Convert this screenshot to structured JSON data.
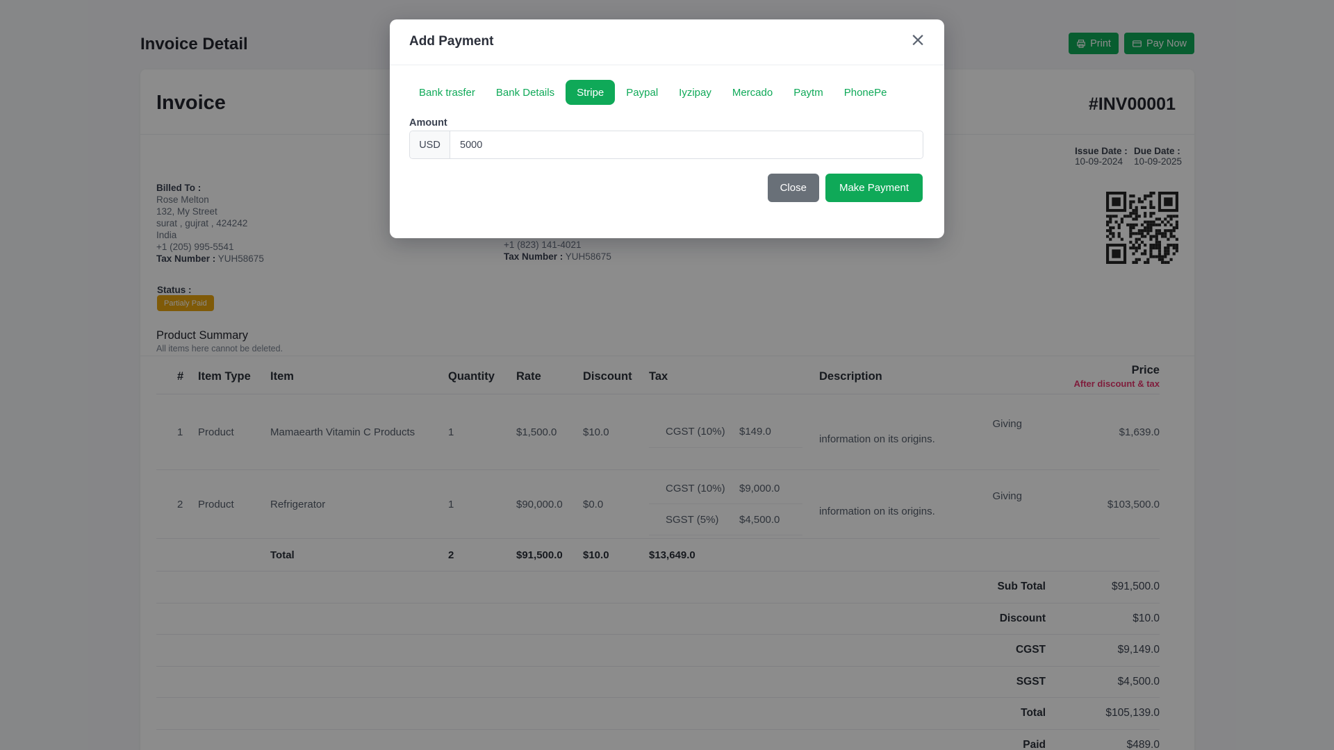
{
  "colors": {
    "green": "#0fa958",
    "gray": "#697078",
    "warning": "#e7a40f",
    "danger": "#e8356d"
  },
  "topbar": {
    "title": "Invoice Detail",
    "print_label": "Print",
    "pay_now_label": "Pay Now"
  },
  "invoice": {
    "heading": "Invoice",
    "number": "#INV00001",
    "billed_to": {
      "label": "Billed To :",
      "lines": [
        "Rose Melton",
        "132, My Street",
        "surat , gujrat , 424242",
        "India",
        "+1 (205) 995-5541"
      ],
      "tax_label": "Tax Number :",
      "tax_value": "YUH58675"
    },
    "shipped_partial": {
      "phone": "+1 (823) 141-4021",
      "tax_label": "Tax Number :",
      "tax_value": "YUH58675"
    },
    "issue_date_label": "Issue Date :",
    "issue_date": "10-09-2024",
    "due_date_label": "Due Date :",
    "due_date": "10-09-2025",
    "status_label": "Status :",
    "status_badge": "Partialy Paid"
  },
  "product_summary": {
    "title": "Product Summary",
    "subtitle": "All items here cannot be deleted.",
    "columns": [
      "#",
      "Item Type",
      "Item",
      "Quantity",
      "Rate",
      "Discount",
      "Tax",
      "Description",
      "Price"
    ],
    "price_subnote": "After discount & tax",
    "rows": [
      {
        "num": "1",
        "item_type": "Product",
        "item": "Mamaearth Vitamin C Products",
        "quantity": "1",
        "rate": "$1,500.0",
        "discount": "$10.0",
        "taxes": [
          {
            "name": "CGST (10%)",
            "amount": "$149.0"
          }
        ],
        "description_line1": "Giving",
        "description_line2": "information on its origins.",
        "price": "$1,639.0"
      },
      {
        "num": "2",
        "item_type": "Product",
        "item": "Refrigerator",
        "quantity": "1",
        "rate": "$90,000.0",
        "discount": "$0.0",
        "taxes": [
          {
            "name": "CGST (10%)",
            "amount": "$9,000.0"
          },
          {
            "name": "SGST (5%)",
            "amount": "$4,500.0"
          }
        ],
        "description_line1": "Giving",
        "description_line2": "information on its origins.",
        "price": "$103,500.0"
      }
    ],
    "total_row": {
      "label": "Total",
      "quantity": "2",
      "rate": "$91,500.0",
      "discount": "$10.0",
      "tax": "$13,649.0"
    },
    "summary": [
      {
        "label": "Sub Total",
        "value": "$91,500.0"
      },
      {
        "label": "Discount",
        "value": "$10.0"
      },
      {
        "label": "CGST",
        "value": "$9,149.0"
      },
      {
        "label": "SGST",
        "value": "$4,500.0"
      },
      {
        "label": "Total",
        "value": "$105,139.0"
      },
      {
        "label": "Paid",
        "value": "$489.0"
      }
    ]
  },
  "modal": {
    "title": "Add Payment",
    "close_icon": "×",
    "tabs": [
      {
        "label": "Bank trasfer",
        "active": false
      },
      {
        "label": "Bank Details",
        "active": false
      },
      {
        "label": "Stripe",
        "active": true
      },
      {
        "label": "Paypal",
        "active": false
      },
      {
        "label": "Iyzipay",
        "active": false
      },
      {
        "label": "Mercado",
        "active": false
      },
      {
        "label": "Paytm",
        "active": false
      },
      {
        "label": "PhonePe",
        "active": false
      }
    ],
    "amount_label": "Amount",
    "currency": "USD",
    "amount_value": "5000",
    "close_label": "Close",
    "make_payment_label": "Make Payment"
  }
}
